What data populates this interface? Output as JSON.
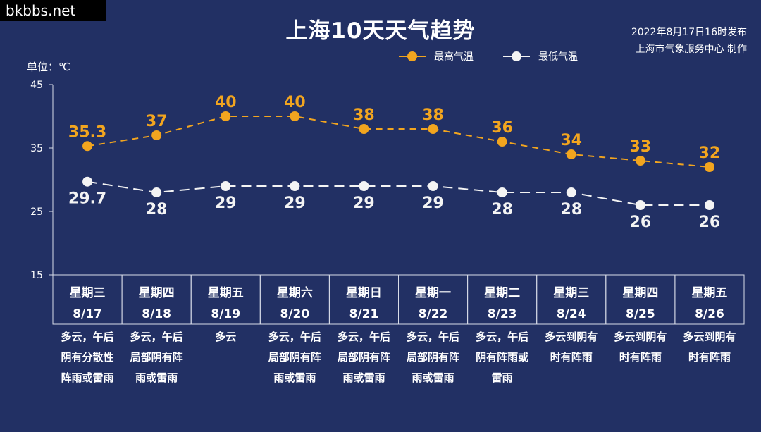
{
  "watermark": "bkbbs.net",
  "header": {
    "title": "上海10天天气趋势",
    "published": "2022年8月17日16时发布",
    "producer": "上海市气象服务中心 制作"
  },
  "unit_label": "单位：℃",
  "chart_data": {
    "type": "line",
    "title": "上海10天天气趋势",
    "ylabel": "单位：℃",
    "ylim": [
      15,
      45
    ],
    "yticks": [
      15,
      25,
      35,
      45
    ],
    "grid": false,
    "legend_position": "top",
    "categories": [
      "8/17",
      "8/18",
      "8/19",
      "8/20",
      "8/21",
      "8/22",
      "8/23",
      "8/24",
      "8/25",
      "8/26"
    ],
    "weekdays": [
      "星期三",
      "星期四",
      "星期五",
      "星期六",
      "星期日",
      "星期一",
      "星期二",
      "星期三",
      "星期四",
      "星期五"
    ],
    "conditions": [
      [
        "多云，午后",
        "阴有分散性",
        "阵雨或雷雨"
      ],
      [
        "多云，午后",
        "局部阴有阵",
        "雨或雷雨"
      ],
      [
        "多云"
      ],
      [
        "多云，午后",
        "局部阴有阵",
        "雨或雷雨"
      ],
      [
        "多云，午后",
        "局部阴有阵",
        "雨或雷雨"
      ],
      [
        "多云，午后",
        "局部阴有阵",
        "雨或雷雨"
      ],
      [
        "多云，午后",
        "阴有阵雨或",
        "雷雨"
      ],
      [
        "多云到阴有",
        "时有阵雨"
      ],
      [
        "多云到阴有",
        "时有阵雨"
      ],
      [
        "多云到阴有",
        "时有阵雨"
      ]
    ],
    "series": [
      {
        "name": "最高气温",
        "color": "#f2a51f",
        "values": [
          35.3,
          37,
          40,
          40,
          38,
          38,
          36,
          34,
          33,
          32
        ],
        "labels": [
          "35.3",
          "37",
          "40",
          "40",
          "38",
          "38",
          "36",
          "34",
          "33",
          "32"
        ]
      },
      {
        "name": "最低气温",
        "color": "#f4f4f4",
        "values": [
          29.7,
          28,
          29,
          29,
          29,
          29,
          28,
          28,
          26,
          26
        ],
        "labels": [
          "29.7",
          "28",
          "29",
          "29",
          "29",
          "29",
          "28",
          "28",
          "26",
          "26"
        ]
      }
    ]
  }
}
